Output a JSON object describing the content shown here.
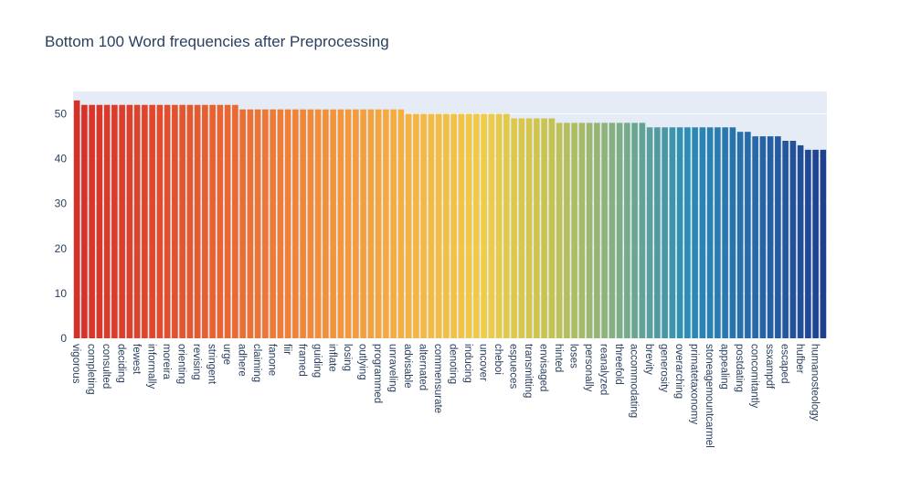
{
  "chart_data": {
    "type": "bar",
    "title": "Bottom 100 Word frequencies after Preprocessing",
    "xlabel": "",
    "ylabel": "",
    "ylim": [
      0,
      55
    ],
    "yticks": [
      0,
      10,
      20,
      30,
      40,
      50
    ],
    "grid": true,
    "legend": "none",
    "colorscale": [
      "#d73027",
      "#e0452b",
      "#e8612f",
      "#ef7d35",
      "#f4993b",
      "#f5b540",
      "#f1cc45",
      "#c5c350",
      "#7fae86",
      "#2b8cb5",
      "#2768a8",
      "#1f3f8f"
    ],
    "tick_label_every": 2,
    "categories": [
      "vigorous",
      "",
      "completing",
      "",
      "consulted",
      "",
      "deciding",
      "",
      "fewest",
      "",
      "informally",
      "",
      "moreira",
      "",
      "orienting",
      "",
      "revising",
      "",
      "stringent",
      "",
      "urge",
      "",
      "adhere",
      "",
      "claiming",
      "",
      "fanone",
      "",
      "fiir",
      "",
      "framed",
      "",
      "guiding",
      "",
      "inflate",
      "",
      "losing",
      "",
      "outlying",
      "",
      "programmed",
      "",
      "unraveling",
      "",
      "advisable",
      "",
      "alternated",
      "",
      "commensurate",
      "",
      "denoting",
      "",
      "inducing",
      "",
      "uncover",
      "",
      "cheboi",
      "",
      "espueces",
      "",
      "transmitting",
      "",
      "envisaged",
      "",
      "hinted",
      "",
      "loses",
      "",
      "personally",
      "",
      "reanalyzed",
      "",
      "threefold",
      "",
      "accommodating",
      "",
      "brevity",
      "",
      "generosity",
      "",
      "overarching",
      "",
      "primatetaxonomy",
      "",
      "stoneagemountcarmel",
      "",
      "appealing",
      "",
      "postdating",
      "",
      "concomitantly",
      "",
      "ssxampdf",
      "",
      "escaped",
      "",
      "hufber",
      "",
      "humanosteology",
      ""
    ],
    "values": [
      53,
      52,
      52,
      52,
      52,
      52,
      52,
      52,
      52,
      52,
      52,
      52,
      52,
      52,
      52,
      52,
      52,
      52,
      52,
      52,
      52,
      52,
      51,
      51,
      51,
      51,
      51,
      51,
      51,
      51,
      51,
      51,
      51,
      51,
      51,
      51,
      51,
      51,
      51,
      51,
      51,
      51,
      51,
      51,
      50,
      50,
      50,
      50,
      50,
      50,
      50,
      50,
      50,
      50,
      50,
      50,
      50,
      50,
      49,
      49,
      49,
      49,
      49,
      49,
      48,
      48,
      48,
      48,
      48,
      48,
      48,
      48,
      48,
      48,
      48,
      48,
      47,
      47,
      47,
      47,
      47,
      47,
      47,
      47,
      47,
      47,
      47,
      47,
      46,
      46,
      45,
      45,
      45,
      45,
      44,
      44,
      43,
      42,
      42,
      42
    ]
  }
}
